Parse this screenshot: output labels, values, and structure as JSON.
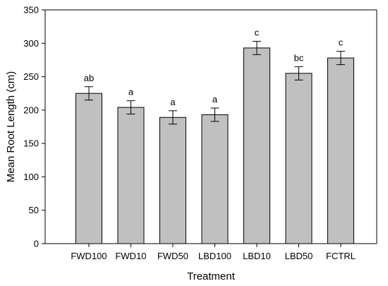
{
  "chart_data": {
    "type": "bar",
    "categories": [
      "FWD100",
      "FWD10",
      "FWD50",
      "LBD100",
      "LBD10",
      "LBD50",
      "FCTRL"
    ],
    "values": [
      225,
      204,
      189,
      193,
      293,
      255,
      278
    ],
    "error": [
      10,
      10,
      10,
      10,
      10,
      10,
      10
    ],
    "significance_labels": [
      "ab",
      "a",
      "a",
      "a",
      "c",
      "bc",
      "c"
    ],
    "xlabel": "Treatment",
    "ylabel": "Mean Root Length (cm)",
    "ylim": [
      0,
      350
    ],
    "yticks": [
      0,
      50,
      100,
      150,
      200,
      250,
      300,
      350
    ],
    "grid": false,
    "bar_color": "#c0c0c0"
  }
}
